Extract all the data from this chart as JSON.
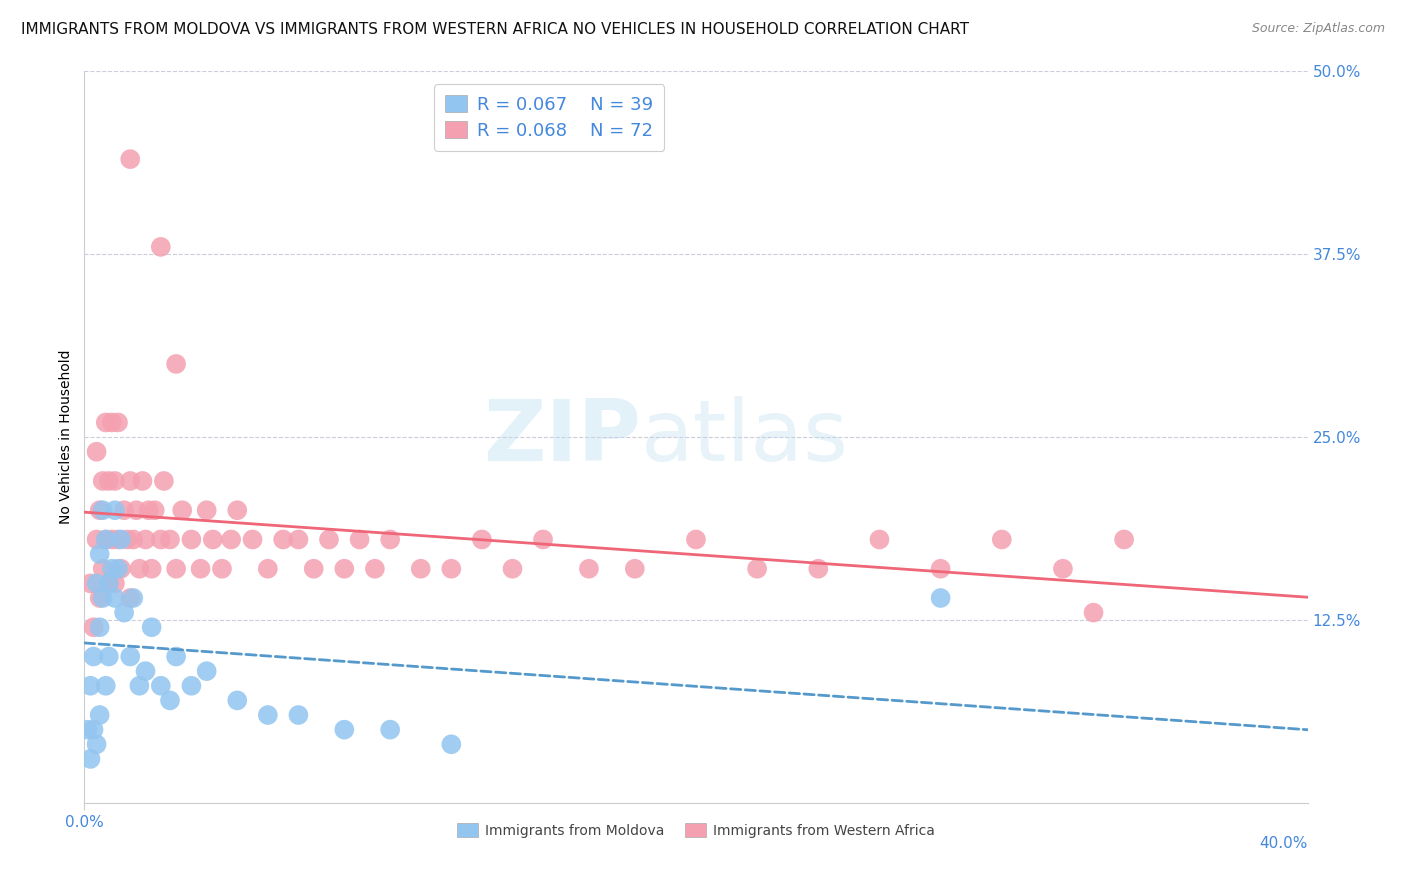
{
  "title": "IMMIGRANTS FROM MOLDOVA VS IMMIGRANTS FROM WESTERN AFRICA NO VEHICLES IN HOUSEHOLD CORRELATION CHART",
  "source": "Source: ZipAtlas.com",
  "ylabel": "No Vehicles in Household",
  "right_yticks": [
    "50.0%",
    "37.5%",
    "25.0%",
    "12.5%"
  ],
  "right_ytick_vals": [
    0.5,
    0.375,
    0.25,
    0.125
  ],
  "xlim": [
    0.0,
    0.4
  ],
  "ylim": [
    0.0,
    0.5
  ],
  "watermark_zip": "ZIP",
  "watermark_atlas": "atlas",
  "legend_r_moldova": "R = 0.067",
  "legend_n_moldova": "N = 39",
  "legend_r_w_africa": "R = 0.068",
  "legend_n_w_africa": "N = 72",
  "moldova_color": "#92C5F0",
  "w_africa_color": "#F4A0B0",
  "moldova_line_color": "#5599CC",
  "w_africa_line_color": "#EE6677",
  "title_fontsize": 11,
  "axis_label_fontsize": 10,
  "tick_fontsize": 11,
  "legend_fontsize": 13,
  "source_fontsize": 9,
  "moldova_x": [
    0.001,
    0.002,
    0.002,
    0.003,
    0.003,
    0.004,
    0.004,
    0.005,
    0.005,
    0.005,
    0.006,
    0.006,
    0.007,
    0.007,
    0.008,
    0.008,
    0.009,
    0.01,
    0.01,
    0.011,
    0.012,
    0.013,
    0.015,
    0.016,
    0.018,
    0.02,
    0.022,
    0.025,
    0.028,
    0.03,
    0.035,
    0.04,
    0.05,
    0.06,
    0.07,
    0.085,
    0.1,
    0.12,
    0.28
  ],
  "moldova_y": [
    0.05,
    0.03,
    0.08,
    0.05,
    0.1,
    0.04,
    0.15,
    0.06,
    0.12,
    0.17,
    0.14,
    0.2,
    0.08,
    0.18,
    0.1,
    0.15,
    0.16,
    0.14,
    0.2,
    0.16,
    0.18,
    0.13,
    0.1,
    0.14,
    0.08,
    0.09,
    0.12,
    0.08,
    0.07,
    0.1,
    0.08,
    0.09,
    0.07,
    0.06,
    0.06,
    0.05,
    0.05,
    0.04,
    0.14
  ],
  "wa_x": [
    0.002,
    0.003,
    0.004,
    0.004,
    0.005,
    0.005,
    0.006,
    0.006,
    0.007,
    0.007,
    0.008,
    0.008,
    0.009,
    0.009,
    0.01,
    0.01,
    0.011,
    0.011,
    0.012,
    0.013,
    0.014,
    0.015,
    0.015,
    0.016,
    0.017,
    0.018,
    0.019,
    0.02,
    0.021,
    0.022,
    0.023,
    0.025,
    0.026,
    0.028,
    0.03,
    0.032,
    0.035,
    0.038,
    0.04,
    0.042,
    0.045,
    0.048,
    0.05,
    0.055,
    0.06,
    0.065,
    0.07,
    0.075,
    0.08,
    0.085,
    0.09,
    0.095,
    0.1,
    0.11,
    0.12,
    0.13,
    0.14,
    0.15,
    0.165,
    0.18,
    0.2,
    0.22,
    0.24,
    0.26,
    0.28,
    0.3,
    0.32,
    0.34,
    0.015,
    0.025,
    0.03,
    0.33
  ],
  "wa_y": [
    0.15,
    0.12,
    0.18,
    0.24,
    0.14,
    0.2,
    0.16,
    0.22,
    0.18,
    0.26,
    0.15,
    0.22,
    0.18,
    0.26,
    0.15,
    0.22,
    0.18,
    0.26,
    0.16,
    0.2,
    0.18,
    0.14,
    0.22,
    0.18,
    0.2,
    0.16,
    0.22,
    0.18,
    0.2,
    0.16,
    0.2,
    0.18,
    0.22,
    0.18,
    0.16,
    0.2,
    0.18,
    0.16,
    0.2,
    0.18,
    0.16,
    0.18,
    0.2,
    0.18,
    0.16,
    0.18,
    0.18,
    0.16,
    0.18,
    0.16,
    0.18,
    0.16,
    0.18,
    0.16,
    0.16,
    0.18,
    0.16,
    0.18,
    0.16,
    0.16,
    0.18,
    0.16,
    0.16,
    0.18,
    0.16,
    0.18,
    0.16,
    0.18,
    0.44,
    0.38,
    0.3,
    0.13
  ]
}
